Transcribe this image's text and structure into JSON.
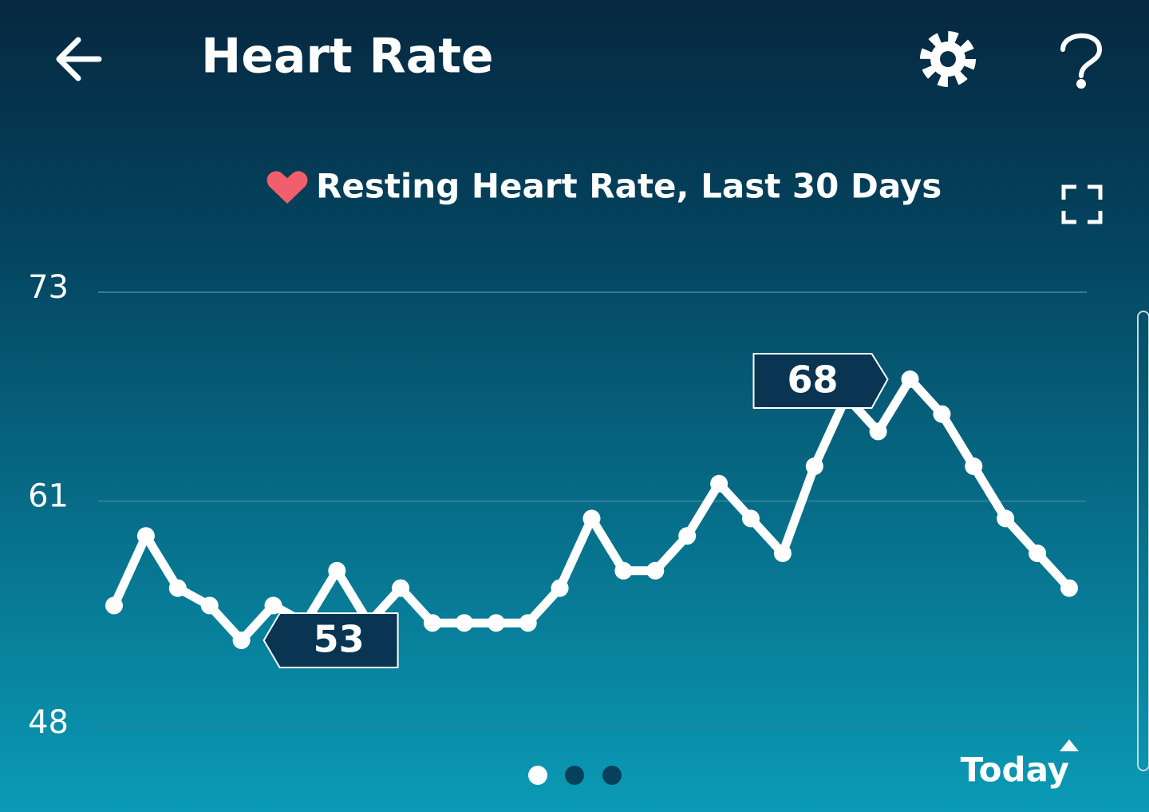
{
  "header": {
    "title": "Heart Rate"
  },
  "chart_data": {
    "type": "line",
    "title": "Resting Heart Rate, Last 30 Days",
    "categories": [
      null,
      null,
      null,
      null,
      null,
      null,
      null,
      null,
      null,
      null,
      null,
      null,
      null,
      null,
      null,
      null,
      null,
      null,
      null,
      null,
      null,
      null,
      null,
      null,
      null,
      null,
      null,
      null,
      null,
      null,
      "Today"
    ],
    "series": [
      {
        "name": "Resting Heart Rate",
        "color": "#ffffff",
        "values": [
          55,
          59,
          56,
          55,
          53,
          55,
          54,
          57,
          54,
          56,
          54,
          54,
          54,
          54,
          56,
          60,
          57,
          57,
          59,
          62,
          60,
          58,
          63,
          67,
          65,
          68,
          66,
          63,
          60,
          58,
          56
        ],
        "value_labels": [
          null,
          null,
          null,
          null,
          "53",
          null,
          null,
          null,
          null,
          null,
          null,
          null,
          null,
          null,
          null,
          null,
          null,
          null,
          null,
          null,
          null,
          null,
          null,
          null,
          null,
          "68",
          null,
          null,
          null,
          null,
          null
        ]
      }
    ],
    "ylim": [
      48,
      73
    ],
    "yticks": [
      48,
      61,
      73
    ],
    "grid": true
  }
}
